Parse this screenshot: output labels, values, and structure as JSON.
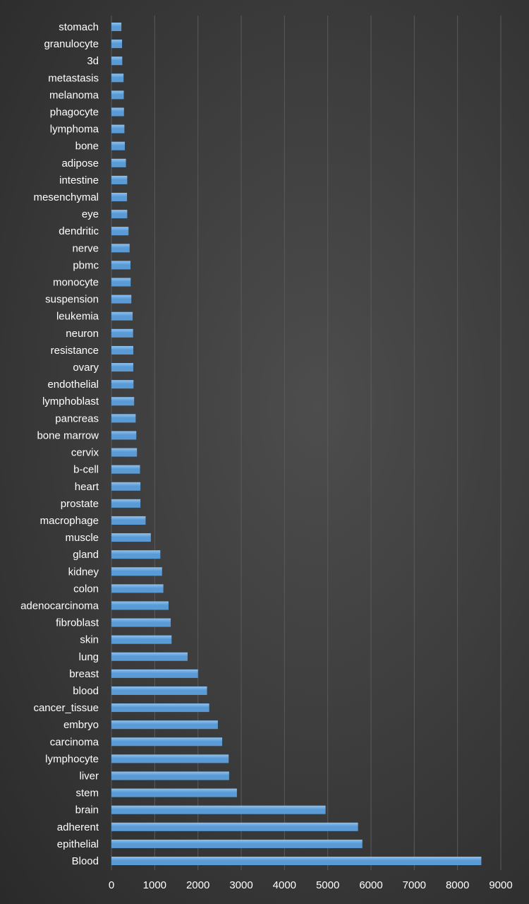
{
  "chart_data": {
    "type": "bar",
    "orientation": "horizontal",
    "title": "",
    "xlabel": "",
    "ylabel": "",
    "xlim": [
      0,
      9000
    ],
    "x_ticks": [
      "0",
      "1000",
      "2000",
      "3000",
      "4000",
      "5000",
      "6000",
      "7000",
      "8000",
      "9000"
    ],
    "grid": "vertical",
    "legend": "none",
    "colors": {
      "bar": "#5b9bd5",
      "bar_highlight": "#8ec2f0",
      "grid": "#5a5a5a",
      "text": "#ffffff"
    },
    "categories": [
      "stomach",
      "granulocyte",
      "3d",
      "metastasis",
      "melanoma",
      "phagocyte",
      "lymphoma",
      "bone",
      "adipose",
      "intestine",
      "mesenchymal",
      "eye",
      "dendritic",
      "nerve",
      "pbmc",
      "monocyte",
      "suspension",
      "leukemia",
      "neuron",
      "resistance",
      "ovary",
      "endothelial",
      "lymphoblast",
      "pancreas",
      "bone marrow",
      "cervix",
      "b-cell",
      "heart",
      "prostate",
      "macrophage",
      "muscle",
      "gland",
      "kidney",
      "colon",
      "adenocarcinoma",
      "fibroblast",
      "skin",
      "lung",
      "breast",
      "blood",
      "cancer_tissue",
      "embryo",
      "carcinoma",
      "lymphocyte",
      "liver",
      "stem",
      "brain",
      "adherent",
      "epithelial",
      "Blood"
    ],
    "values": [
      230,
      245,
      250,
      280,
      285,
      290,
      300,
      310,
      335,
      365,
      360,
      365,
      395,
      420,
      440,
      445,
      460,
      490,
      500,
      505,
      505,
      510,
      525,
      560,
      575,
      590,
      660,
      670,
      670,
      790,
      910,
      1130,
      1170,
      1200,
      1320,
      1370,
      1390,
      1760,
      2000,
      2210,
      2260,
      2460,
      2560,
      2710,
      2720,
      2900,
      4950,
      5700,
      5800,
      8550
    ]
  }
}
